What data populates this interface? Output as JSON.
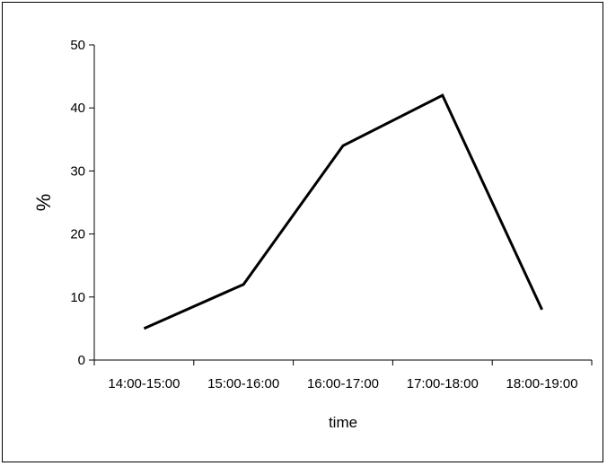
{
  "chart_data": {
    "type": "line",
    "title": "",
    "xlabel": "time",
    "ylabel": "%",
    "categories": [
      "14:00-15:00",
      "15:00-16:00",
      "16:00-17:00",
      "17:00-18:00",
      "18:00-19:00"
    ],
    "series": [
      {
        "values": [
          5,
          12,
          34,
          42,
          8
        ],
        "color": "#000000"
      }
    ],
    "ylim": [
      0,
      50
    ],
    "yticks": [
      0,
      10,
      20,
      30,
      40,
      50
    ],
    "grid": false,
    "legend": "none"
  }
}
